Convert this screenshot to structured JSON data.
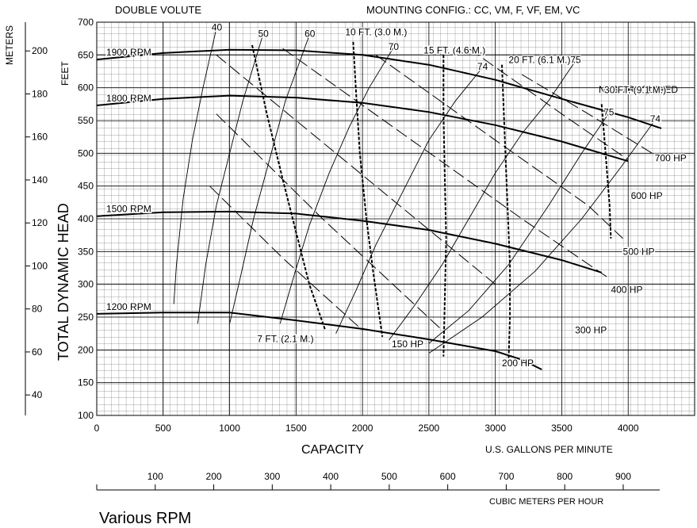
{
  "chart_data": {
    "type": "line",
    "title_left": "DOUBLE VOLUTE",
    "title_right": "MOUNTING CONFIG.:  CC,  VM,  F,  VF,  EM,  VC",
    "xlabel": "CAPACITY",
    "xunit": "U.S. GALLONS PER MINUTE",
    "ylabel": "TOTAL DYNAMIC HEAD",
    "yunit_feet": "FEET",
    "yunit_meters": "METERS",
    "x2unit": "CUBIC METERS PER HOUR",
    "footer": "Various RPM",
    "xlim": [
      0,
      4500
    ],
    "ylim": [
      100,
      700
    ],
    "x_ticks": [
      "0",
      "500",
      "1000",
      "1500",
      "2000",
      "2500",
      "3000",
      "3500",
      "4000"
    ],
    "y_ticks": [
      "100",
      "150",
      "200",
      "250",
      "300",
      "350",
      "400",
      "450",
      "500",
      "550",
      "600",
      "650",
      "700"
    ],
    "meters_ticks": [
      "40",
      "60",
      "80",
      "100",
      "120",
      "140",
      "160",
      "180",
      "200"
    ],
    "m3h_ticks": [
      "100",
      "200",
      "300",
      "400",
      "500",
      "600",
      "700",
      "800",
      "900"
    ],
    "grid": true,
    "rpm_curves": [
      {
        "name": "1900 RPM",
        "points": [
          [
            0,
            643
          ],
          [
            500,
            653
          ],
          [
            1000,
            658
          ],
          [
            1500,
            657
          ],
          [
            2000,
            650
          ],
          [
            2500,
            635
          ],
          [
            3000,
            612
          ],
          [
            3500,
            583
          ],
          [
            4000,
            555
          ],
          [
            4250,
            538
          ]
        ]
      },
      {
        "name": "1800 RPM",
        "points": [
          [
            0,
            573
          ],
          [
            500,
            583
          ],
          [
            1000,
            588
          ],
          [
            1500,
            585
          ],
          [
            2000,
            577
          ],
          [
            2500,
            563
          ],
          [
            3000,
            543
          ],
          [
            3500,
            518
          ],
          [
            4000,
            488
          ]
        ]
      },
      {
        "name": "1500 RPM",
        "points": [
          [
            0,
            404
          ],
          [
            500,
            410
          ],
          [
            1000,
            411
          ],
          [
            1500,
            408
          ],
          [
            2000,
            397
          ],
          [
            2500,
            383
          ],
          [
            3000,
            362
          ],
          [
            3500,
            337
          ],
          [
            3800,
            318
          ]
        ]
      },
      {
        "name": "1200 RPM",
        "points": [
          [
            0,
            255
          ],
          [
            500,
            257
          ],
          [
            1000,
            257
          ],
          [
            1500,
            245
          ],
          [
            2000,
            232
          ],
          [
            2500,
            216
          ],
          [
            3000,
            198
          ],
          [
            3200,
            185
          ],
          [
            3350,
            170
          ]
        ]
      }
    ],
    "efficiency_curves": [
      {
        "name": "40",
        "points": [
          [
            580,
            270
          ],
          [
            600,
            330
          ],
          [
            650,
            430
          ],
          [
            720,
            520
          ],
          [
            800,
            600
          ],
          [
            900,
            690
          ]
        ]
      },
      {
        "name": "50",
        "points": [
          [
            760,
            240
          ],
          [
            820,
            330
          ],
          [
            900,
            420
          ],
          [
            1000,
            500
          ],
          [
            1100,
            580
          ],
          [
            1250,
            680
          ]
        ]
      },
      {
        "name": "60",
        "points": [
          [
            1000,
            240
          ],
          [
            1080,
            310
          ],
          [
            1180,
            400
          ],
          [
            1300,
            490
          ],
          [
            1420,
            580
          ],
          [
            1600,
            680
          ]
        ]
      },
      {
        "name": "70",
        "points": [
          [
            1380,
            240
          ],
          [
            1480,
            310
          ],
          [
            1600,
            390
          ],
          [
            1750,
            470
          ],
          [
            1900,
            540
          ],
          [
            2050,
            600
          ],
          [
            2230,
            660
          ]
        ]
      },
      {
        "name": "74",
        "points": [
          [
            1800,
            225
          ],
          [
            1950,
            290
          ],
          [
            2100,
            360
          ],
          [
            2300,
            440
          ],
          [
            2500,
            520
          ],
          [
            2700,
            580
          ],
          [
            2900,
            630
          ]
        ]
      },
      {
        "name": "75",
        "points": [
          [
            2200,
            215
          ],
          [
            2400,
            270
          ],
          [
            2600,
            330
          ],
          [
            2800,
            400
          ],
          [
            3000,
            470
          ],
          [
            3200,
            530
          ],
          [
            3400,
            580
          ],
          [
            3600,
            640
          ]
        ]
      },
      {
        "name": "75",
        "points": [
          [
            2500,
            210
          ],
          [
            2800,
            260
          ],
          [
            3100,
            330
          ],
          [
            3400,
            420
          ],
          [
            3650,
            500
          ],
          [
            3850,
            560
          ]
        ]
      },
      {
        "name": "74",
        "points": [
          [
            2500,
            195
          ],
          [
            2900,
            250
          ],
          [
            3300,
            320
          ],
          [
            3650,
            400
          ],
          [
            3950,
            480
          ],
          [
            4200,
            550
          ]
        ]
      }
    ],
    "efficiency_labels": [
      "40",
      "50",
      "60",
      "70",
      "74",
      "75",
      "75",
      "74"
    ],
    "npsh_curves": [
      {
        "name": "7 FT. (2.1 M.)",
        "points": [
          [
            1170,
            665
          ],
          [
            1280,
            560
          ],
          [
            1400,
            460
          ],
          [
            1500,
            380
          ],
          [
            1600,
            300
          ],
          [
            1720,
            230
          ]
        ]
      },
      {
        "name": "10 FT. (3.0 M.)",
        "points": [
          [
            1930,
            670
          ],
          [
            1950,
            600
          ],
          [
            1980,
            500
          ],
          [
            2030,
            400
          ],
          [
            2080,
            320
          ],
          [
            2150,
            220
          ]
        ]
      },
      {
        "name": "15 FT. (4.6 M.)",
        "points": [
          [
            2610,
            650
          ],
          [
            2610,
            560
          ],
          [
            2620,
            460
          ],
          [
            2630,
            370
          ],
          [
            2620,
            280
          ],
          [
            2610,
            190
          ]
        ]
      },
      {
        "name": "20 FT. (6.1 M.)",
        "points": [
          [
            3050,
            635
          ],
          [
            3070,
            530
          ],
          [
            3090,
            430
          ],
          [
            3110,
            330
          ],
          [
            3110,
            250
          ],
          [
            3100,
            185
          ]
        ]
      },
      {
        "name": "30 FT. (9.1 M.)",
        "points": [
          [
            3800,
            575
          ],
          [
            3830,
            500
          ],
          [
            3860,
            420
          ],
          [
            3870,
            370
          ]
        ]
      }
    ],
    "npsh_note": "NPSH REQUIRED",
    "hp_labels": [
      "150 HP",
      "200 HP",
      "300 HP",
      "400 HP",
      "500 HP",
      "600 HP",
      "700 HP"
    ],
    "hp_lines": [
      [
        [
          850,
          450
        ],
        [
          1400,
          340
        ],
        [
          2000,
          230
        ]
      ],
      [
        [
          900,
          560
        ],
        [
          1700,
          400
        ],
        [
          2600,
          230
        ]
      ],
      [
        [
          900,
          650
        ],
        [
          1800,
          500
        ],
        [
          2700,
          350
        ],
        [
          3000,
          300
        ]
      ],
      [
        [
          1400,
          660
        ],
        [
          2300,
          530
        ],
        [
          3200,
          400
        ],
        [
          3850,
          310
        ]
      ],
      [
        [
          2100,
          650
        ],
        [
          3000,
          520
        ],
        [
          3700,
          420
        ],
        [
          3960,
          370
        ]
      ],
      [
        [
          2800,
          660
        ],
        [
          3500,
          560
        ],
        [
          4000,
          490
        ]
      ],
      [
        [
          3200,
          620
        ],
        [
          3700,
          560
        ],
        [
          4180,
          500
        ]
      ]
    ]
  }
}
